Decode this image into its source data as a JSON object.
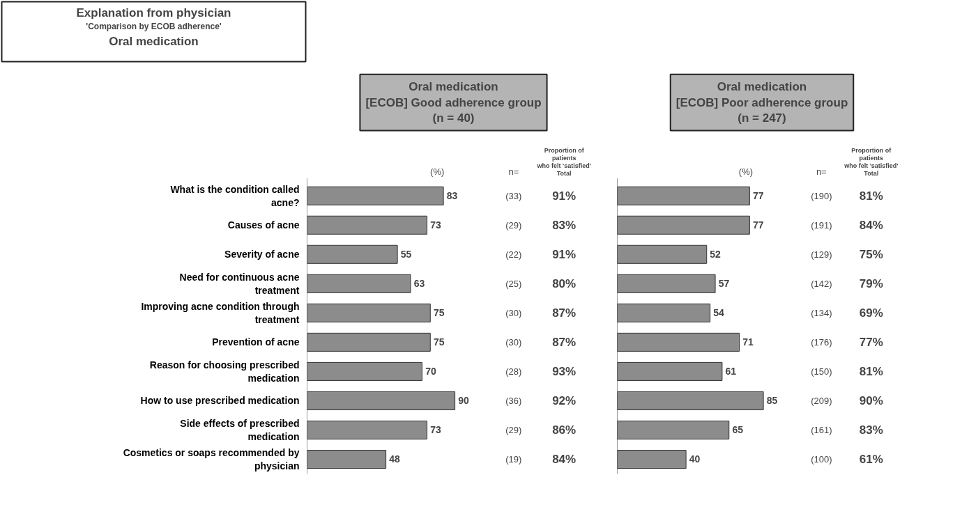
{
  "chart_data": [
    {
      "type": "bar",
      "orientation": "horizontal",
      "title": "Oral medication\n[ECOB] Good adherence group\n(n = 40)",
      "categories": [
        "What is the condition called acne?",
        "Causes of acne",
        "Severity of acne",
        "Need for continuous acne treatment",
        "Improving acne condition through treatment",
        "Prevention of acne",
        "Reason for choosing prescribed medication",
        "How to use prescribed medication",
        "Side effects of prescribed medication",
        "Cosmetics or soaps recommended by physician"
      ],
      "values": [
        83,
        73,
        55,
        63,
        75,
        75,
        70,
        90,
        73,
        48
      ],
      "color": "#8c8c8c",
      "data_labels": true,
      "tick_labels": "y",
      "grid": false,
      "annotations": [
        "Explanation from physician",
        "'Comparison by ECOB adherence'",
        "Oral medication",
        "(%)",
        "n=",
        "Proportion of\npatients\nwho felt 'satisfied'\nTotal",
        "(33)",
        "91%",
        "(29)",
        "83%",
        "(22)",
        "91%",
        "(25)",
        "80%",
        "(30)",
        "87%",
        "(30)",
        "87%",
        "(28)",
        "93%",
        "(36)",
        "92%",
        "(29)",
        "86%",
        "(19)",
        "84%"
      ]
    },
    {
      "type": "bar",
      "orientation": "horizontal",
      "title": "Oral medication\n[ECOB] Poor adherence group\n(n = 247)",
      "categories": [
        "What is the condition called acne?",
        "Causes of acne",
        "Severity of acne",
        "Need for continuous acne treatment",
        "Improving acne condition through treatment",
        "Prevention of acne",
        "Reason for choosing prescribed medication",
        "How to use prescribed medication",
        "Side effects of prescribed medication",
        "Cosmetics or soaps recommended by physician"
      ],
      "values": [
        77,
        77,
        52,
        57,
        54,
        71,
        61,
        85,
        65,
        40
      ],
      "color": "#8c8c8c",
      "data_labels": true,
      "tick_labels": false,
      "grid": false,
      "annotations": [
        "(%)",
        "n=",
        "Proportion of\npatients\nwho felt 'satisfied'\nTotal",
        "(190)",
        "81%",
        "(191)",
        "84%",
        "(129)",
        "75%",
        "(142)",
        "79%",
        "(134)",
        "69%",
        "(176)",
        "77%",
        "(150)",
        "81%",
        "(209)",
        "90%",
        "(161)",
        "83%",
        "(100)",
        "61%"
      ]
    }
  ]
}
